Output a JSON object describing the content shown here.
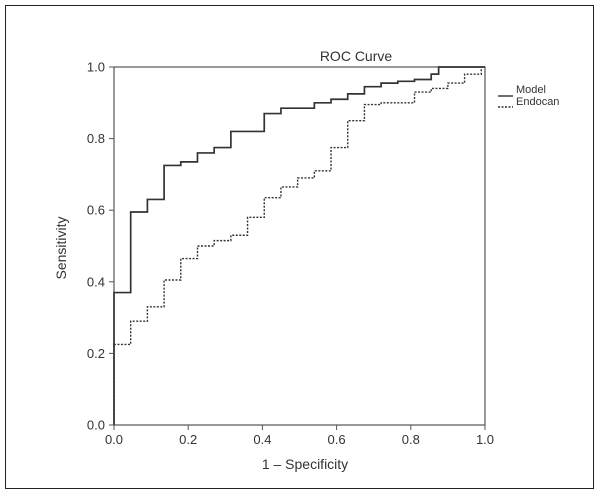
{
  "chart_data": {
    "type": "line",
    "title": "ROC Curve",
    "xlabel": "1 – Specificity",
    "ylabel": "Sensitivity",
    "xlim": [
      0,
      1
    ],
    "ylim": [
      0,
      1
    ],
    "x_ticks": [
      "0.0",
      "0.2",
      "0.4",
      "0.6",
      "0.8",
      "1.0"
    ],
    "y_ticks": [
      "0.0",
      "0.2",
      "0.4",
      "0.6",
      "0.8",
      "1.0"
    ],
    "grid": false,
    "legend_position": "right",
    "series": [
      {
        "name": "Model",
        "line_style": "solid",
        "color": "#333333",
        "points": [
          [
            0,
            0
          ],
          [
            0,
            0.37
          ],
          [
            0.045,
            0.37
          ],
          [
            0.045,
            0.595
          ],
          [
            0.09,
            0.595
          ],
          [
            0.09,
            0.63
          ],
          [
            0.135,
            0.63
          ],
          [
            0.135,
            0.725
          ],
          [
            0.18,
            0.725
          ],
          [
            0.18,
            0.735
          ],
          [
            0.225,
            0.735
          ],
          [
            0.225,
            0.76
          ],
          [
            0.27,
            0.76
          ],
          [
            0.27,
            0.775
          ],
          [
            0.315,
            0.775
          ],
          [
            0.315,
            0.82
          ],
          [
            0.405,
            0.82
          ],
          [
            0.405,
            0.87
          ],
          [
            0.45,
            0.87
          ],
          [
            0.45,
            0.885
          ],
          [
            0.54,
            0.885
          ],
          [
            0.54,
            0.9
          ],
          [
            0.585,
            0.9
          ],
          [
            0.585,
            0.91
          ],
          [
            0.63,
            0.91
          ],
          [
            0.63,
            0.925
          ],
          [
            0.675,
            0.925
          ],
          [
            0.675,
            0.945
          ],
          [
            0.72,
            0.945
          ],
          [
            0.72,
            0.955
          ],
          [
            0.765,
            0.955
          ],
          [
            0.765,
            0.96
          ],
          [
            0.81,
            0.96
          ],
          [
            0.81,
            0.965
          ],
          [
            0.855,
            0.965
          ],
          [
            0.855,
            0.98
          ],
          [
            0.875,
            0.98
          ],
          [
            0.875,
            1.0
          ],
          [
            1.0,
            1.0
          ]
        ]
      },
      {
        "name": "Endocan",
        "line_style": "dashed",
        "color": "#333333",
        "points": [
          [
            0,
            0
          ],
          [
            0,
            0.225
          ],
          [
            0.045,
            0.225
          ],
          [
            0.045,
            0.29
          ],
          [
            0.09,
            0.29
          ],
          [
            0.09,
            0.33
          ],
          [
            0.135,
            0.33
          ],
          [
            0.135,
            0.405
          ],
          [
            0.18,
            0.405
          ],
          [
            0.18,
            0.465
          ],
          [
            0.225,
            0.465
          ],
          [
            0.225,
            0.5
          ],
          [
            0.27,
            0.5
          ],
          [
            0.27,
            0.515
          ],
          [
            0.315,
            0.515
          ],
          [
            0.315,
            0.53
          ],
          [
            0.36,
            0.53
          ],
          [
            0.36,
            0.58
          ],
          [
            0.405,
            0.58
          ],
          [
            0.405,
            0.635
          ],
          [
            0.45,
            0.635
          ],
          [
            0.45,
            0.665
          ],
          [
            0.495,
            0.665
          ],
          [
            0.495,
            0.69
          ],
          [
            0.54,
            0.69
          ],
          [
            0.54,
            0.71
          ],
          [
            0.585,
            0.71
          ],
          [
            0.585,
            0.775
          ],
          [
            0.63,
            0.775
          ],
          [
            0.63,
            0.85
          ],
          [
            0.675,
            0.85
          ],
          [
            0.675,
            0.895
          ],
          [
            0.72,
            0.895
          ],
          [
            0.72,
            0.9
          ],
          [
            0.81,
            0.9
          ],
          [
            0.81,
            0.93
          ],
          [
            0.855,
            0.93
          ],
          [
            0.855,
            0.94
          ],
          [
            0.9,
            0.94
          ],
          [
            0.9,
            0.955
          ],
          [
            0.945,
            0.955
          ],
          [
            0.945,
            0.98
          ],
          [
            0.99,
            0.98
          ],
          [
            0.99,
            1.0
          ]
        ]
      }
    ]
  }
}
